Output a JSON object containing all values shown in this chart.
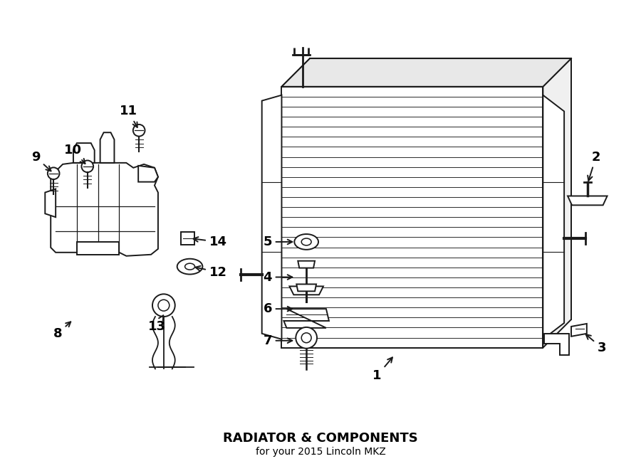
{
  "title": "RADIATOR & COMPONENTS",
  "subtitle": "for your 2015 Lincoln MKZ",
  "bg_color": "#ffffff",
  "line_color": "#1a1a1a",
  "fig_width": 9.0,
  "fig_height": 6.62,
  "dpi": 100
}
